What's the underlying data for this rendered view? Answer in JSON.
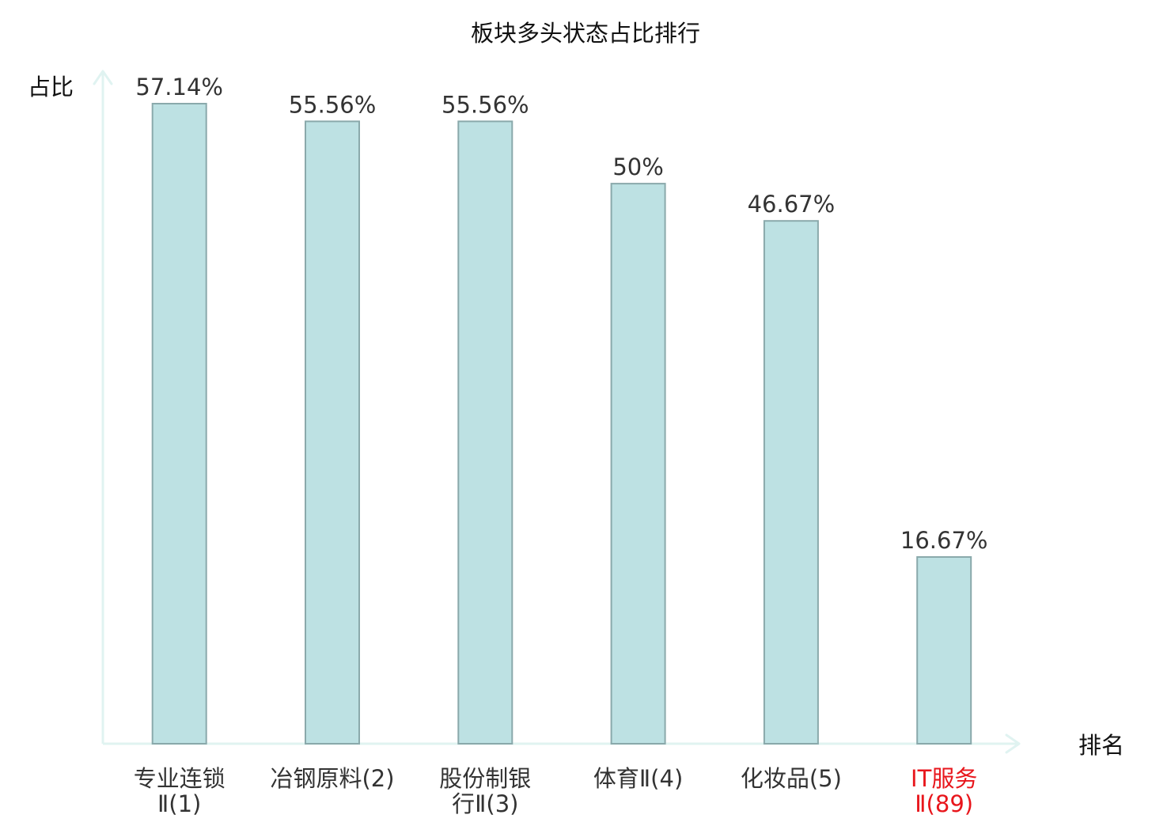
{
  "chart_data": {
    "type": "bar",
    "title": "板块多头状态占比排行",
    "ylabel": "占比",
    "xlabel": "排名",
    "ylim": [
      0,
      57.14
    ],
    "grid": false,
    "categories": [
      {
        "lines": [
          "专业连锁",
          "Ⅱ(1)"
        ],
        "highlight": false
      },
      {
        "lines": [
          "冶钢原料(2)"
        ],
        "highlight": false
      },
      {
        "lines": [
          "股份制银",
          "行Ⅱ(3)"
        ],
        "highlight": false
      },
      {
        "lines": [
          "体育Ⅱ(4)"
        ],
        "highlight": false
      },
      {
        "lines": [
          "化妆品(5)"
        ],
        "highlight": false
      },
      {
        "lines": [
          "IT服务",
          "Ⅱ(89)"
        ],
        "highlight": true
      }
    ],
    "values": [
      57.14,
      55.56,
      55.56,
      50,
      46.67,
      16.67
    ],
    "value_labels": [
      "57.14%",
      "55.56%",
      "55.56%",
      "50%",
      "46.67%",
      "16.67%"
    ],
    "colors": {
      "bar_fill": "#bde1e3",
      "bar_stroke": "#8aa9ab",
      "axis": "#e0f3f1",
      "text": "#333333",
      "title": "#111111",
      "highlight": "#e8161c"
    }
  }
}
